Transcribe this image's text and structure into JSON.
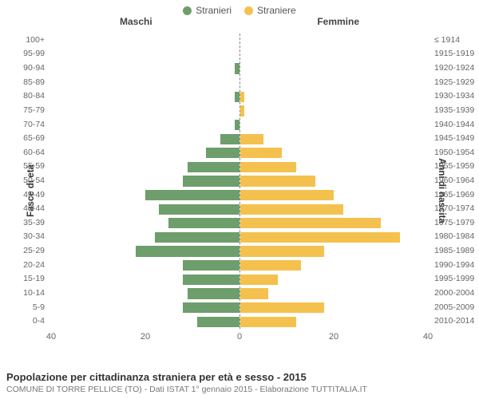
{
  "chart": {
    "type": "population-pyramid",
    "background_color": "#ffffff",
    "legend": {
      "male": {
        "label": "Stranieri",
        "color": "#6e9e6b"
      },
      "female": {
        "label": "Straniere",
        "color": "#f5c14e"
      }
    },
    "headers": {
      "left": "Maschi",
      "right": "Femmine"
    },
    "axis_titles": {
      "left": "Fasce di età",
      "right": "Anni di nascita"
    },
    "bar_height_pct": 75,
    "x": {
      "max": 40,
      "ticks_left": [
        40,
        20,
        0
      ],
      "ticks_right": [
        0,
        20,
        40
      ]
    },
    "tick_color": "#666666",
    "label_fontsize": 10.5,
    "axis_title_fontsize": 11.5,
    "rows": [
      {
        "age": "100+",
        "birth": "≤ 1914",
        "m": 0,
        "f": 0
      },
      {
        "age": "95-99",
        "birth": "1915-1919",
        "m": 0,
        "f": 0
      },
      {
        "age": "90-94",
        "birth": "1920-1924",
        "m": 1,
        "f": 0
      },
      {
        "age": "85-89",
        "birth": "1925-1929",
        "m": 0,
        "f": 0
      },
      {
        "age": "80-84",
        "birth": "1930-1934",
        "m": 1,
        "f": 1
      },
      {
        "age": "75-79",
        "birth": "1935-1939",
        "m": 0,
        "f": 1
      },
      {
        "age": "70-74",
        "birth": "1940-1944",
        "m": 1,
        "f": 0
      },
      {
        "age": "65-69",
        "birth": "1945-1949",
        "m": 4,
        "f": 5
      },
      {
        "age": "60-64",
        "birth": "1950-1954",
        "m": 7,
        "f": 9
      },
      {
        "age": "55-59",
        "birth": "1955-1959",
        "m": 11,
        "f": 12
      },
      {
        "age": "50-54",
        "birth": "1960-1964",
        "m": 12,
        "f": 16
      },
      {
        "age": "45-49",
        "birth": "1965-1969",
        "m": 20,
        "f": 20
      },
      {
        "age": "40-44",
        "birth": "1970-1974",
        "m": 17,
        "f": 22
      },
      {
        "age": "35-39",
        "birth": "1975-1979",
        "m": 15,
        "f": 30
      },
      {
        "age": "30-34",
        "birth": "1980-1984",
        "m": 18,
        "f": 34
      },
      {
        "age": "25-29",
        "birth": "1985-1989",
        "m": 22,
        "f": 18
      },
      {
        "age": "20-24",
        "birth": "1990-1994",
        "m": 12,
        "f": 13
      },
      {
        "age": "15-19",
        "birth": "1995-1999",
        "m": 12,
        "f": 8
      },
      {
        "age": "10-14",
        "birth": "2000-2004",
        "m": 11,
        "f": 6
      },
      {
        "age": "5-9",
        "birth": "2005-2009",
        "m": 12,
        "f": 18
      },
      {
        "age": "0-4",
        "birth": "2010-2014",
        "m": 9,
        "f": 12
      }
    ]
  },
  "footer": {
    "title": "Popolazione per cittadinanza straniera per età e sesso - 2015",
    "sub": "COMUNE DI TORRE PELLICE (TO) - Dati ISTAT 1° gennaio 2015 - Elaborazione TUTTITALIA.IT"
  }
}
